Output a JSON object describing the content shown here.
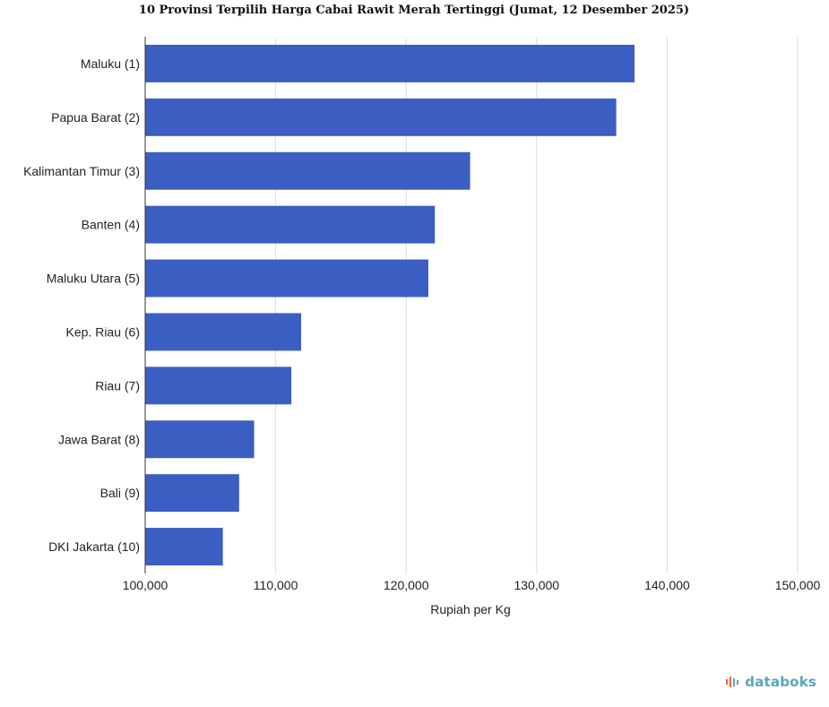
{
  "chart_data": {
    "type": "bar",
    "orientation": "horizontal",
    "title": "10 Provinsi Terpilih Harga Cabai Rawit Merah Tertinggi (Jumat, 12 Desember 2025)",
    "xlabel": "Rupiah per Kg",
    "ylabel": "",
    "xlim": [
      100000,
      150000
    ],
    "xticks": [
      100000,
      110000,
      120000,
      130000,
      140000,
      150000
    ],
    "xtick_labels": [
      "100,000",
      "110,000",
      "120,000",
      "130,000",
      "140,000",
      "150,000"
    ],
    "grid": true,
    "categories": [
      "Maluku (1)",
      "Papua Barat (2)",
      "Kalimantan Timur (3)",
      "Banten (4)",
      "Maluku Utara (5)",
      "Kep. Riau (6)",
      "Riau (7)",
      "Jawa Barat (8)",
      "Bali (9)",
      "DKI Jakarta (10)"
    ],
    "values": [
      137500,
      136100,
      124900,
      122200,
      121700,
      111950,
      111200,
      108350,
      107200,
      105950
    ],
    "bar_color": "#3b5ec2"
  },
  "brand": {
    "name": "databoks",
    "icon": "databoks-logo-icon",
    "color": "#5aa6b8",
    "accent": "#e8643c"
  }
}
